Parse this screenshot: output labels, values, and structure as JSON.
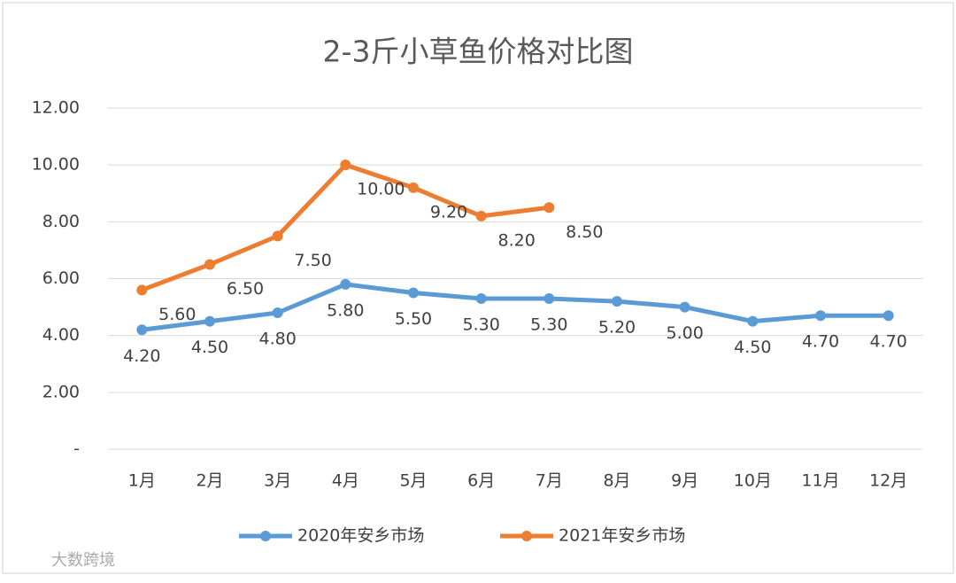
{
  "chart_data": {
    "type": "line",
    "title": "2-3斤小草鱼价格对比图",
    "categories": [
      "1月",
      "2月",
      "3月",
      "4月",
      "5月",
      "6月",
      "7月",
      "8月",
      "9月",
      "10月",
      "11月",
      "12月"
    ],
    "series": [
      {
        "name": "2020年安乡市场",
        "color": "#5b9bd5",
        "values": [
          4.2,
          4.5,
          4.8,
          5.8,
          5.5,
          5.3,
          5.3,
          5.2,
          5.0,
          4.5,
          4.7,
          4.7
        ],
        "value_labels": [
          "4.20",
          "4.50",
          "4.80",
          "5.80",
          "5.50",
          "5.30",
          "5.30",
          "5.20",
          "5.00",
          "4.50",
          "4.70",
          "4.70"
        ]
      },
      {
        "name": "2021年安乡市场",
        "color": "#ed7d31",
        "values": [
          5.6,
          6.5,
          7.5,
          10.0,
          9.2,
          8.2,
          8.5,
          null,
          null,
          null,
          null,
          null
        ],
        "value_labels": [
          "5.60",
          "6.50",
          "7.50",
          "10.00",
          "9.20",
          "8.20",
          "8.50",
          null,
          null,
          null,
          null,
          null
        ]
      }
    ],
    "ylim": [
      0,
      12
    ],
    "yticks": [
      {
        "value": 0,
        "label": "-"
      },
      {
        "value": 2,
        "label": "2.00"
      },
      {
        "value": 4,
        "label": "4.00"
      },
      {
        "value": 6,
        "label": "6.00"
      },
      {
        "value": 8,
        "label": "8.00"
      },
      {
        "value": 10,
        "label": "10.00"
      },
      {
        "value": 12,
        "label": "12.00"
      }
    ],
    "grid": true,
    "legend": "bottom",
    "watermark": "大数跨境"
  }
}
